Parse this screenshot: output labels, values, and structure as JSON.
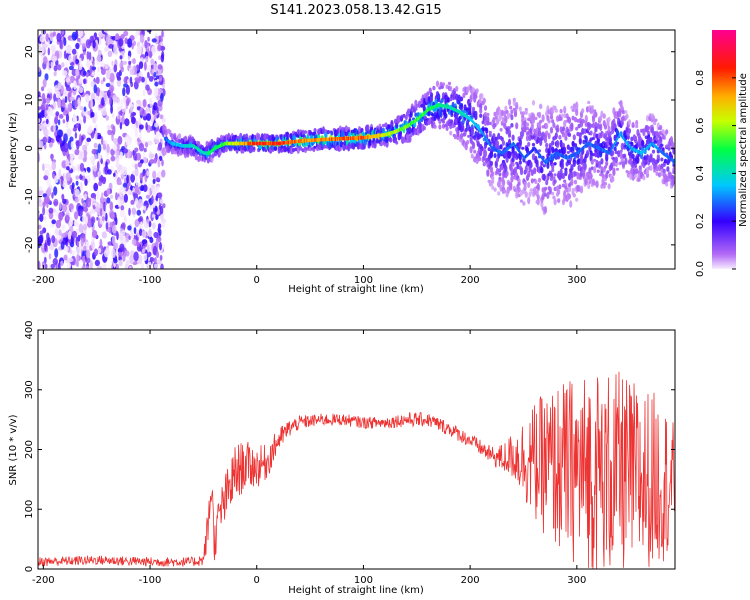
{
  "title": "S141.2023.058.13.42.G15",
  "chart_data": [
    {
      "type": "heatmap",
      "xlabel": "Height of straight line (km)",
      "ylabel": "Frequency (Hz)",
      "xlim": [
        -205,
        392
      ],
      "ylim": [
        -25,
        24.5
      ],
      "x_ticks": [
        "-200",
        "-100",
        "0",
        "100",
        "200",
        "300"
      ],
      "y_ticks": [
        "20",
        "10",
        "0",
        "-10",
        "-20"
      ],
      "colorbar": {
        "label": "Normalized spectral amplitude",
        "range": [
          0,
          1
        ],
        "ticks": [
          "0.0",
          "0.2",
          "0.4",
          "0.6",
          "0.8"
        ],
        "colormap": "gist_rainbow_r"
      },
      "noise_region_x": [
        -205,
        -87
      ],
      "ridge": {
        "x": [
          -87,
          -80,
          -70,
          -60,
          -50,
          -45,
          -40,
          -30,
          -20,
          -10,
          0,
          20,
          40,
          60,
          80,
          100,
          110,
          120,
          130,
          140,
          150,
          160,
          170,
          180,
          190,
          200,
          210,
          220,
          230,
          240,
          250,
          260,
          270,
          280,
          290,
          300,
          310,
          320,
          330,
          340,
          350,
          360,
          370,
          380,
          392
        ],
        "frequency": [
          2,
          1,
          0.5,
          0.5,
          -1,
          -1,
          0,
          1,
          1,
          1,
          1,
          1,
          1.5,
          1.8,
          2,
          2.2,
          2.5,
          2.8,
          3.5,
          4.5,
          6,
          8,
          9,
          8.5,
          7.5,
          6,
          3.5,
          0,
          -1,
          1,
          -2,
          0,
          -3,
          -1,
          -2,
          -1,
          1,
          0,
          -1,
          3,
          0,
          -1,
          1,
          -1,
          -3
        ],
        "amplitude": [
          0.3,
          0.35,
          0.4,
          0.45,
          0.4,
          0.5,
          0.5,
          0.6,
          0.7,
          0.8,
          0.9,
          0.9,
          0.8,
          0.8,
          0.85,
          0.85,
          0.75,
          0.7,
          0.65,
          0.6,
          0.55,
          0.55,
          0.5,
          0.45,
          0.45,
          0.4,
          0.35,
          0.3,
          0.3,
          0.3,
          0.3,
          0.25,
          0.3,
          0.3,
          0.3,
          0.3,
          0.3,
          0.3,
          0.3,
          0.35,
          0.35,
          0.35,
          0.35,
          0.3,
          0.3
        ],
        "spread_hz": [
          3,
          2,
          2,
          2,
          2,
          2,
          2,
          1.5,
          1.5,
          1.5,
          1.5,
          1.5,
          2,
          2,
          2,
          2,
          2,
          2,
          2.5,
          3,
          3.5,
          4,
          4.5,
          5,
          6,
          7,
          8,
          8,
          9,
          10,
          10,
          10,
          11,
          10,
          10,
          10,
          9,
          8,
          7,
          7,
          6,
          6,
          6,
          6,
          6
        ]
      }
    },
    {
      "type": "line",
      "xlabel": "Height of straight line (km)",
      "ylabel": "SNR (10 * v/v)",
      "xlim": [
        -205,
        392
      ],
      "ylim": [
        0,
        400
      ],
      "x_ticks": [
        "-200",
        "-100",
        "0",
        "100",
        "200",
        "300"
      ],
      "y_ticks": [
        "400",
        "300",
        "200",
        "100",
        "0"
      ],
      "color": "#ee3333",
      "series": [
        {
          "x": [
            -205,
            -150,
            -100,
            -60,
            -50,
            -45,
            -42,
            -40,
            -35,
            -20,
            -10,
            0,
            10,
            20,
            30,
            40,
            60,
            80,
            100,
            120,
            140,
            160,
            180,
            200,
            220,
            230,
            240,
            260,
            280,
            300,
            320,
            340,
            360,
            380,
            392
          ],
          "mean": [
            12,
            15,
            12,
            12,
            15,
            80,
            150,
            40,
            90,
            160,
            175,
            170,
            180,
            215,
            235,
            245,
            250,
            250,
            245,
            245,
            250,
            250,
            235,
            215,
            190,
            185,
            190,
            180,
            170,
            165,
            160,
            160,
            150,
            150,
            140
          ],
          "amplitude": [
            8,
            8,
            8,
            8,
            10,
            40,
            40,
            30,
            40,
            50,
            40,
            35,
            30,
            20,
            15,
            12,
            10,
            10,
            10,
            10,
            12,
            12,
            12,
            12,
            15,
            25,
            40,
            100,
            140,
            160,
            180,
            170,
            160,
            140,
            100
          ]
        }
      ]
    }
  ]
}
